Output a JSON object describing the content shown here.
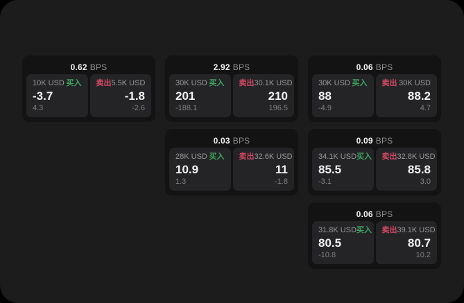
{
  "page": {
    "surface_color": "#1c1c1d",
    "card_color": "#131314",
    "pane_color": "#242427"
  },
  "colors": {
    "buy": "#3fa35f",
    "sell": "#d64964",
    "primary_text": "#f2f2f2",
    "secondary_text": "#9a9a9a",
    "muted_text": "#828282",
    "unit_text": "#8f8f8f"
  },
  "labels": {
    "bps_unit": "BPS",
    "buy": "买入",
    "sell": "卖出"
  },
  "columns": [
    {
      "cards": [
        {
          "bps": "0.62",
          "buy": {
            "notional": "10K USD",
            "main": "-3.7",
            "sub": "4.3"
          },
          "sell": {
            "notional": "5.5K USD",
            "main": "-1.8",
            "sub": "-2.6"
          }
        }
      ]
    },
    {
      "cards": [
        {
          "bps": "2.92",
          "buy": {
            "notional": "30K USD",
            "main": "201",
            "sub": "-188.1"
          },
          "sell": {
            "notional": "30.1K USD",
            "main": "210",
            "sub": "196.5"
          }
        },
        {
          "bps": "0.03",
          "buy": {
            "notional": "28K USD",
            "main": "10.9",
            "sub": "1.3"
          },
          "sell": {
            "notional": "32.6K USD",
            "main": "11",
            "sub": "-1.8"
          }
        }
      ]
    },
    {
      "cards": [
        {
          "bps": "0.06",
          "buy": {
            "notional": "30K USD",
            "main": "88",
            "sub": "-4.9"
          },
          "sell": {
            "notional": "30K USD",
            "main": "88.2",
            "sub": "4.7"
          }
        },
        {
          "bps": "0.09",
          "buy": {
            "notional": "34.1K USD",
            "main": "85.5",
            "sub": "-3.1"
          },
          "sell": {
            "notional": "32.8K USD",
            "main": "85.8",
            "sub": "3.0"
          }
        },
        {
          "bps": "0.06",
          "buy": {
            "notional": "31.8K USD",
            "main": "80.5",
            "sub": "-10.8"
          },
          "sell": {
            "notional": "39.1K USD",
            "main": "80.7",
            "sub": "10.2"
          }
        }
      ]
    }
  ]
}
